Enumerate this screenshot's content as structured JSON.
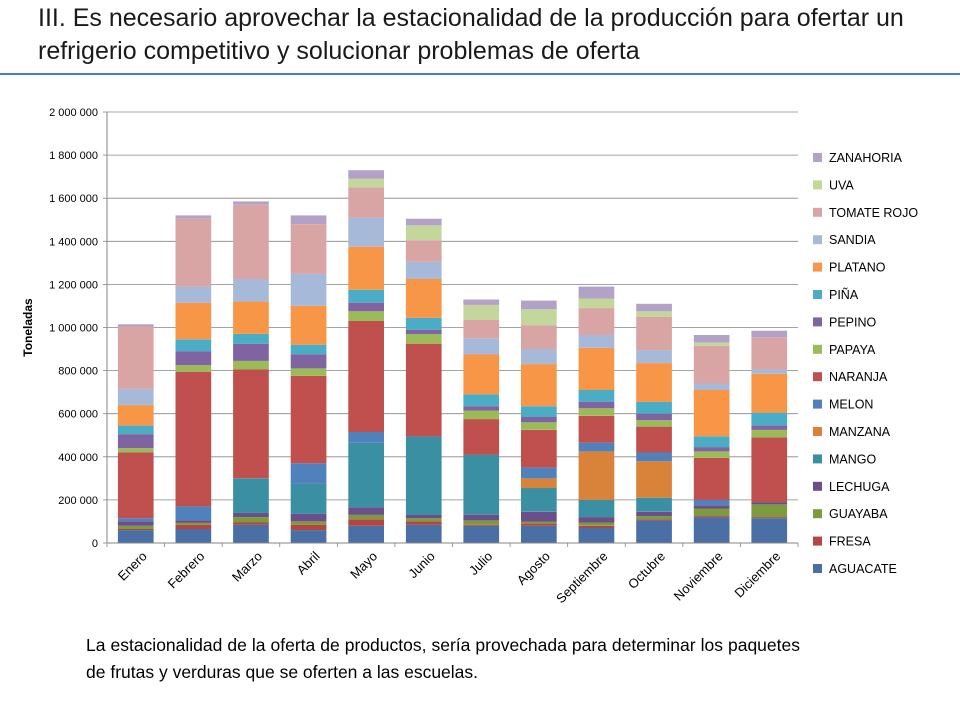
{
  "slide": {
    "title": "III. Es necesario aprovechar la estacionalidad de la producción para ofertar un refrigerio competitivo y solucionar problemas de oferta",
    "body": "La estacionalidad de la oferta de productos,  sería provechada para determinar los paquetes de frutas y verduras que se oferten a las escuelas.",
    "rule_color": "#4a7ebb"
  },
  "chart_data": {
    "type": "bar",
    "stacked": true,
    "title": "",
    "xlabel": "",
    "ylabel": "Toneladas",
    "ylim": [
      0,
      2000000
    ],
    "yticks": [
      0,
      200000,
      400000,
      600000,
      800000,
      1000000,
      1200000,
      1400000,
      1600000,
      1800000,
      2000000
    ],
    "ytick_labels": [
      "0",
      "200 000",
      "400 000",
      "600 000",
      "800 000",
      "1 000 000",
      "1 200 000",
      "1 400 000",
      "1 600 000",
      "1 800 000",
      "2 000 000"
    ],
    "grid": true,
    "legend_position": "right",
    "categories": [
      "Enero",
      "Febrero",
      "Marzo",
      "Abril",
      "Mayo",
      "Junio",
      "Julio",
      "Agosto",
      "Septiembre",
      "Octubre",
      "Noviembre",
      "Diciembre"
    ],
    "series": [
      {
        "name": "AGUACATE",
        "color": "#4a6fa5",
        "values": [
          60000,
          65000,
          85000,
          60000,
          80000,
          85000,
          80000,
          80000,
          70000,
          105000,
          120000,
          115000
        ]
      },
      {
        "name": "FRESA",
        "color": "#b34542",
        "values": [
          5000,
          20000,
          10000,
          25000,
          30000,
          15000,
          5000,
          10000,
          10000,
          5000,
          5000,
          5000
        ]
      },
      {
        "name": "GUAYABA",
        "color": "#7d9a3f",
        "values": [
          15000,
          10000,
          25000,
          15000,
          20000,
          15000,
          20000,
          10000,
          15000,
          15000,
          35000,
          60000
        ]
      },
      {
        "name": "LECHUGA",
        "color": "#6b4f8a",
        "values": [
          20000,
          10000,
          20000,
          35000,
          35000,
          15000,
          25000,
          45000,
          25000,
          20000,
          15000,
          10000
        ]
      },
      {
        "name": "MANGO",
        "color": "#3a8fa3",
        "values": [
          0,
          0,
          160000,
          140000,
          300000,
          365000,
          280000,
          110000,
          80000,
          65000,
          0,
          0
        ]
      },
      {
        "name": "MANZANA",
        "color": "#d9833a",
        "values": [
          0,
          0,
          0,
          0,
          0,
          0,
          0,
          45000,
          225000,
          170000,
          0,
          0
        ]
      },
      {
        "name": "MELON",
        "color": "#4f81bd",
        "values": [
          15000,
          65000,
          0,
          95000,
          50000,
          0,
          0,
          50000,
          40000,
          40000,
          25000,
          0
        ]
      },
      {
        "name": "NARANJA",
        "color": "#c0504d",
        "values": [
          305000,
          625000,
          505000,
          405000,
          515000,
          430000,
          165000,
          175000,
          125000,
          120000,
          195000,
          300000
        ]
      },
      {
        "name": "PAPAYA",
        "color": "#9bbb59",
        "values": [
          20000,
          30000,
          40000,
          35000,
          45000,
          45000,
          40000,
          35000,
          35000,
          30000,
          30000,
          35000
        ]
      },
      {
        "name": "PEPINO",
        "color": "#8064a2",
        "values": [
          65000,
          65000,
          80000,
          65000,
          40000,
          20000,
          20000,
          25000,
          30000,
          30000,
          20000,
          20000
        ]
      },
      {
        "name": "PIÑA",
        "color": "#4bacc6",
        "values": [
          40000,
          55000,
          45000,
          45000,
          60000,
          55000,
          55000,
          50000,
          55000,
          55000,
          50000,
          60000
        ]
      },
      {
        "name": "PLATANO",
        "color": "#f79646",
        "values": [
          95000,
          170000,
          150000,
          180000,
          200000,
          180000,
          185000,
          195000,
          195000,
          180000,
          215000,
          180000
        ]
      },
      {
        "name": "SANDIA",
        "color": "#a7b9d9",
        "values": [
          75000,
          75000,
          105000,
          150000,
          135000,
          80000,
          75000,
          70000,
          60000,
          60000,
          30000,
          20000
        ]
      },
      {
        "name": "TOMATE ROJO",
        "color": "#d9a5a4",
        "values": [
          290000,
          315000,
          345000,
          230000,
          140000,
          100000,
          85000,
          110000,
          125000,
          155000,
          175000,
          150000
        ]
      },
      {
        "name": "UVA",
        "color": "#c3d69b",
        "values": [
          0,
          0,
          0,
          0,
          40000,
          70000,
          70000,
          75000,
          45000,
          25000,
          15000,
          0
        ]
      },
      {
        "name": "ZANAHORIA",
        "color": "#b3a2c7",
        "values": [
          10000,
          15000,
          15000,
          40000,
          40000,
          30000,
          25000,
          40000,
          55000,
          35000,
          35000,
          30000
        ]
      }
    ]
  }
}
